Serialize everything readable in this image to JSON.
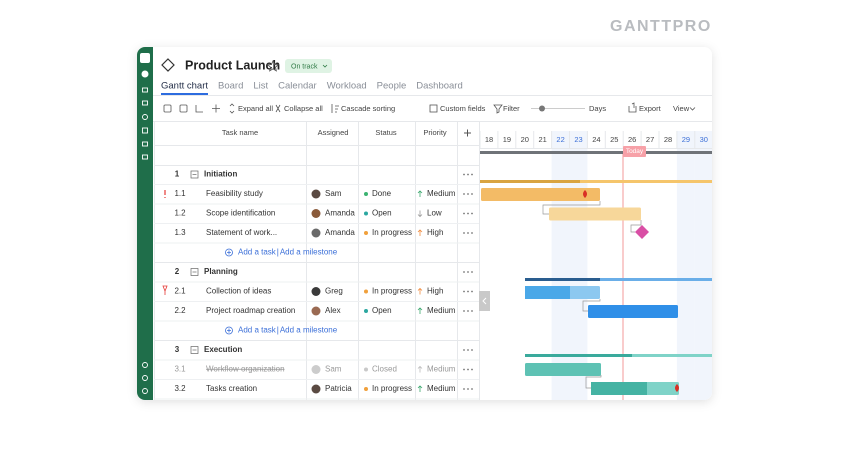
{
  "brand": "GANTTPRO",
  "project": {
    "title": "Product Launch",
    "status": "On track"
  },
  "tabs": [
    "Gantt chart",
    "Board",
    "List",
    "Calendar",
    "Workload",
    "People",
    "Dashboard"
  ],
  "toolbar": {
    "expand": "Expand all",
    "collapse": "Collapse all",
    "cascade": "Cascade sorting",
    "custom_fields": "Custom fields",
    "filter": "Filter",
    "scale": "Days",
    "export": "Export",
    "view": "View"
  },
  "table": {
    "columns": [
      "Task name",
      "Assigned",
      "Status",
      "Priority"
    ],
    "add_task": "Add a task",
    "add_milestone": "Add a milestone",
    "groups": [
      {
        "number": 1,
        "name": "Initiation",
        "tasks": [
          {
            "number": "1.1",
            "name": "Feasibility study",
            "assigned": "Sam",
            "status": "Done",
            "priority": "Medium"
          },
          {
            "number": "1.2",
            "name": "Scope identification",
            "assigned": "Amanda",
            "status": "Open",
            "priority": "Low"
          },
          {
            "number": "1.3",
            "name": "Statement of work...",
            "assigned": "Amanda",
            "status": "In progress",
            "priority": "High"
          }
        ]
      },
      {
        "number": 2,
        "name": "Planning",
        "tasks": [
          {
            "number": "2.1",
            "name": "Collection of ideas",
            "assigned": "Greg",
            "status": "In progress",
            "priority": "High"
          },
          {
            "number": "2.2",
            "name": "Project roadmap creation",
            "assigned": "Alex",
            "status": "Open",
            "priority": "Medium"
          }
        ]
      },
      {
        "number": 3,
        "name": "Execution",
        "tasks": [
          {
            "number": "3.1",
            "name": "Workflow organization",
            "assigned": "Sam",
            "status": "Closed",
            "priority": "Medium"
          },
          {
            "number": "3.2",
            "name": "Tasks creation",
            "assigned": "Patricia",
            "status": "In progress",
            "priority": "Medium"
          }
        ]
      }
    ]
  },
  "timeline": {
    "days": [
      18,
      19,
      20,
      21,
      22,
      23,
      24,
      25,
      26,
      27,
      28,
      29,
      30
    ],
    "today": "Today"
  }
}
